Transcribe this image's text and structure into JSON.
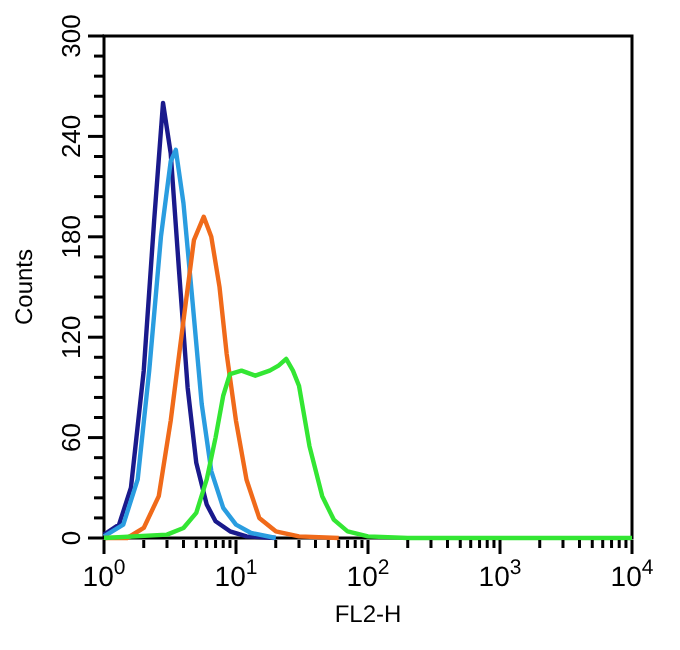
{
  "chart_data": {
    "type": "line",
    "xlabel": "FL2-H",
    "ylabel": "Counts",
    "log": "x",
    "xlim": [
      1,
      10000
    ],
    "ylim": [
      0,
      300
    ],
    "xticks": [
      {
        "value": 1,
        "label": "10$^{0}$"
      },
      {
        "value": 2,
        "label": null
      },
      {
        "value": 3,
        "label": null
      },
      {
        "value": 4,
        "label": null
      },
      {
        "value": 5,
        "label": null
      },
      {
        "value": 6,
        "label": null
      },
      {
        "value": 7,
        "label": null
      },
      {
        "value": 8,
        "label": null
      },
      {
        "value": 9,
        "label": null
      },
      {
        "value": 10,
        "label": "10$^{1}$"
      },
      {
        "value": 20,
        "label": null
      },
      {
        "value": 30,
        "label": null
      },
      {
        "value": 40,
        "label": null
      },
      {
        "value": 50,
        "label": null
      },
      {
        "value": 60,
        "label": null
      },
      {
        "value": 70,
        "label": null
      },
      {
        "value": 80,
        "label": null
      },
      {
        "value": 90,
        "label": null
      },
      {
        "value": 100,
        "label": "10$^{2}$"
      },
      {
        "value": 200,
        "label": null
      },
      {
        "value": 300,
        "label": null
      },
      {
        "value": 400,
        "label": null
      },
      {
        "value": 500,
        "label": null
      },
      {
        "value": 600,
        "label": null
      },
      {
        "value": 700,
        "label": null
      },
      {
        "value": 800,
        "label": null
      },
      {
        "value": 900,
        "label": null
      },
      {
        "value": 1000,
        "label": "10$^{3}$"
      },
      {
        "value": 2000,
        "label": null
      },
      {
        "value": 3000,
        "label": null
      },
      {
        "value": 4000,
        "label": null
      },
      {
        "value": 5000,
        "label": null
      },
      {
        "value": 6000,
        "label": null
      },
      {
        "value": 7000,
        "label": null
      },
      {
        "value": 8000,
        "label": null
      },
      {
        "value": 9000,
        "label": null
      },
      {
        "value": 10000,
        "label": "10$^{4}$"
      }
    ],
    "yticks": [
      0,
      {
        "value": 12,
        "label": null
      },
      {
        "value": 24,
        "label": null
      },
      {
        "value": 36,
        "label": null
      },
      {
        "value": 48,
        "label": null
      },
      60,
      {
        "value": 72,
        "label": null
      },
      {
        "value": 84,
        "label": null
      },
      {
        "value": 96,
        "label": null
      },
      {
        "value": 108,
        "label": null
      },
      120,
      {
        "value": 132,
        "label": null
      },
      {
        "value": 144,
        "label": null
      },
      {
        "value": 156,
        "label": null
      },
      {
        "value": 168,
        "label": null
      },
      180,
      {
        "value": 192,
        "label": null
      },
      {
        "value": 204,
        "label": null
      },
      {
        "value": 216,
        "label": null
      },
      {
        "value": 228,
        "label": null
      },
      240,
      {
        "value": 252,
        "label": null
      },
      {
        "value": 264,
        "label": null
      },
      {
        "value": 276,
        "label": null
      },
      {
        "value": 288,
        "label": null
      },
      300
    ],
    "grid": false,
    "line_style": "solid",
    "series": [
      {
        "color": "#1a1a8c",
        "x": [
          1,
          1.3,
          1.6,
          2,
          2.4,
          2.8,
          3.2,
          3.7,
          4.3,
          5,
          6,
          7,
          9,
          12,
          20
        ],
        "values": [
          2,
          8,
          30,
          100,
          190,
          260,
          230,
          160,
          90,
          45,
          20,
          10,
          4,
          1,
          0
        ]
      },
      {
        "color": "#2a9de0",
        "x": [
          1,
          1.4,
          1.8,
          2.2,
          2.7,
          3.2,
          3.5,
          4,
          4.7,
          5.5,
          6.5,
          8,
          10,
          13,
          20
        ],
        "values": [
          1,
          8,
          35,
          100,
          180,
          225,
          232,
          200,
          140,
          80,
          40,
          18,
          8,
          3,
          0
        ]
      },
      {
        "color": "#f06a1a",
        "x": [
          1,
          1.5,
          2,
          2.6,
          3.2,
          4,
          4.8,
          5.7,
          6.5,
          7.5,
          8.5,
          10,
          12,
          15,
          20,
          30,
          60
        ],
        "values": [
          0,
          0,
          6,
          25,
          70,
          130,
          178,
          192,
          180,
          150,
          110,
          70,
          35,
          12,
          4,
          1,
          0
        ]
      },
      {
        "color": "#33e633",
        "x": [
          1,
          3,
          4,
          5,
          6,
          7,
          8,
          9,
          11,
          14,
          18,
          21,
          24,
          27,
          30,
          36,
          45,
          55,
          70,
          100,
          200,
          10000
        ],
        "values": [
          0,
          2,
          6,
          15,
          35,
          60,
          85,
          98,
          100,
          97,
          100,
          103,
          107,
          100,
          91,
          55,
          25,
          11,
          4,
          1,
          0,
          0
        ]
      }
    ]
  }
}
